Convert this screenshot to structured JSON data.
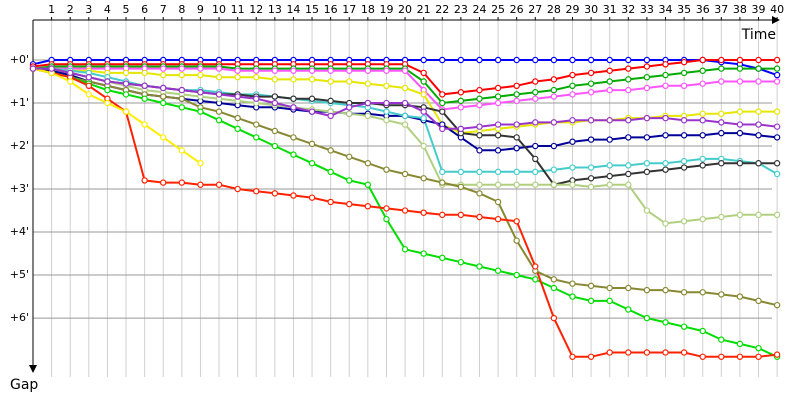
{
  "chart_data": {
    "type": "line",
    "x_label": "Time",
    "y_label": "Gap",
    "x": [
      0,
      1,
      2,
      3,
      4,
      5,
      6,
      7,
      8,
      9,
      10,
      11,
      12,
      13,
      14,
      15,
      16,
      17,
      18,
      19,
      20,
      21,
      22,
      23,
      24,
      25,
      26,
      27,
      28,
      29,
      30,
      31,
      32,
      33,
      34,
      35,
      36,
      37,
      38,
      39,
      40
    ],
    "xlim": [
      0,
      40.8
    ],
    "xticks": [
      1,
      2,
      3,
      4,
      5,
      6,
      7,
      8,
      9,
      10,
      11,
      12,
      13,
      14,
      15,
      16,
      17,
      18,
      19,
      20,
      21,
      22,
      23,
      24,
      25,
      26,
      27,
      28,
      29,
      30,
      31,
      32,
      33,
      34,
      35,
      36,
      37,
      38,
      39,
      40
    ],
    "ylim": [
      -0.93,
      7.37
    ],
    "yticks": [
      {
        "value": 0,
        "label": "+0'"
      },
      {
        "value": 1,
        "label": "+1'"
      },
      {
        "value": 2,
        "label": "+2'"
      },
      {
        "value": 3,
        "label": "+3'"
      },
      {
        "value": 4,
        "label": "+4'"
      },
      {
        "value": 5,
        "label": "+5'"
      },
      {
        "value": 6,
        "label": "+6'"
      }
    ],
    "grid": true,
    "series": [
      {
        "color": "#0000ff",
        "values": [
          0.1,
          0,
          0,
          0,
          0,
          0,
          0,
          0,
          0,
          0,
          0,
          0,
          0,
          0,
          0,
          0,
          0,
          0,
          0,
          0,
          0,
          0,
          0,
          0,
          0,
          0,
          0,
          0,
          0,
          0,
          0,
          0,
          0,
          0,
          0,
          0,
          0,
          0.05,
          0.1,
          0.2,
          0.35
        ]
      },
      {
        "color": "#ff0000",
        "values": [
          0.15,
          0.1,
          0.1,
          0.1,
          0.1,
          0.1,
          0.1,
          0.1,
          0.1,
          0.1,
          0.1,
          0.1,
          0.1,
          0.1,
          0.1,
          0.1,
          0.1,
          0.1,
          0.1,
          0.1,
          0.1,
          0.3,
          0.8,
          0.75,
          0.7,
          0.65,
          0.6,
          0.5,
          0.45,
          0.35,
          0.3,
          0.25,
          0.2,
          0.15,
          0.1,
          0.05,
          0,
          0,
          0,
          0,
          0
        ]
      },
      {
        "color": "#00aa00",
        "values": [
          0.2,
          0.15,
          0.15,
          0.15,
          0.15,
          0.15,
          0.15,
          0.15,
          0.15,
          0.15,
          0.15,
          0.2,
          0.2,
          0.2,
          0.2,
          0.2,
          0.2,
          0.2,
          0.2,
          0.2,
          0.2,
          0.5,
          1.0,
          0.95,
          0.9,
          0.85,
          0.8,
          0.75,
          0.7,
          0.6,
          0.55,
          0.5,
          0.45,
          0.4,
          0.35,
          0.3,
          0.25,
          0.2,
          0.2,
          0.2,
          0.2
        ]
      },
      {
        "color": "#ff55ff",
        "values": [
          0.2,
          0.2,
          0.2,
          0.2,
          0.2,
          0.2,
          0.2,
          0.2,
          0.2,
          0.2,
          0.2,
          0.25,
          0.25,
          0.25,
          0.25,
          0.25,
          0.25,
          0.25,
          0.25,
          0.25,
          0.25,
          0.7,
          1.15,
          1.1,
          1.05,
          1.0,
          0.95,
          0.9,
          0.85,
          0.8,
          0.75,
          0.7,
          0.7,
          0.65,
          0.6,
          0.6,
          0.55,
          0.5,
          0.5,
          0.5,
          0.5
        ]
      },
      {
        "color": "#e6e600",
        "values": [
          0.2,
          0.2,
          0.25,
          0.25,
          0.3,
          0.3,
          0.3,
          0.35,
          0.35,
          0.35,
          0.4,
          0.4,
          0.4,
          0.45,
          0.45,
          0.45,
          0.5,
          0.5,
          0.55,
          0.6,
          0.65,
          0.8,
          1.5,
          1.7,
          1.65,
          1.6,
          1.55,
          1.5,
          1.45,
          1.45,
          1.4,
          1.4,
          1.35,
          1.35,
          1.3,
          1.3,
          1.25,
          1.25,
          1.2,
          1.2,
          1.2
        ]
      },
      {
        "color": "#000099",
        "values": [
          0.2,
          0.25,
          0.35,
          0.5,
          0.6,
          0.7,
          0.8,
          0.85,
          0.9,
          0.95,
          1.0,
          1.05,
          1.1,
          1.1,
          1.15,
          1.2,
          1.2,
          1.25,
          1.25,
          1.3,
          1.3,
          1.4,
          1.5,
          1.8,
          2.1,
          2.1,
          2.05,
          2.0,
          2.0,
          1.9,
          1.85,
          1.85,
          1.8,
          1.8,
          1.75,
          1.75,
          1.75,
          1.7,
          1.7,
          1.75,
          1.8
        ]
      },
      {
        "color": "#44cccc",
        "values": [
          0.2,
          0.2,
          0.25,
          0.3,
          0.4,
          0.5,
          0.6,
          0.65,
          0.7,
          0.7,
          0.75,
          0.8,
          0.8,
          0.85,
          0.9,
          0.95,
          1.0,
          1.05,
          1.1,
          1.2,
          1.3,
          1.35,
          2.6,
          2.6,
          2.6,
          2.6,
          2.6,
          2.6,
          2.55,
          2.5,
          2.5,
          2.45,
          2.45,
          2.4,
          2.4,
          2.35,
          2.3,
          2.3,
          2.35,
          2.4,
          2.65
        ]
      },
      {
        "color": "#333333",
        "values": [
          0.2,
          0.2,
          0.3,
          0.4,
          0.5,
          0.55,
          0.6,
          0.65,
          0.7,
          0.75,
          0.8,
          0.8,
          0.85,
          0.85,
          0.9,
          0.9,
          0.95,
          1.0,
          1.0,
          1.05,
          1.05,
          1.1,
          1.2,
          1.7,
          1.75,
          1.75,
          1.8,
          2.3,
          2.9,
          2.8,
          2.75,
          2.7,
          2.65,
          2.6,
          2.55,
          2.5,
          2.45,
          2.4,
          2.4,
          2.4,
          2.4
        ]
      },
      {
        "color": "#b0d080",
        "values": [
          0.2,
          0.2,
          0.3,
          0.4,
          0.5,
          0.6,
          0.7,
          0.75,
          0.8,
          0.85,
          0.9,
          0.95,
          1.0,
          1.05,
          1.1,
          1.15,
          1.2,
          1.25,
          1.3,
          1.4,
          1.5,
          2.0,
          2.9,
          2.9,
          2.9,
          2.9,
          2.9,
          2.9,
          2.9,
          2.9,
          2.95,
          2.9,
          2.9,
          3.5,
          3.8,
          3.75,
          3.7,
          3.65,
          3.6,
          3.6,
          3.6
        ]
      },
      {
        "color": "#888833",
        "values": [
          0.2,
          0.3,
          0.4,
          0.5,
          0.6,
          0.7,
          0.8,
          0.85,
          0.9,
          1.1,
          1.2,
          1.35,
          1.5,
          1.65,
          1.8,
          1.95,
          2.1,
          2.25,
          2.4,
          2.55,
          2.65,
          2.75,
          2.85,
          2.95,
          3.1,
          3.3,
          4.2,
          4.9,
          5.1,
          5.2,
          5.25,
          5.3,
          5.3,
          5.35,
          5.35,
          5.4,
          5.4,
          5.45,
          5.5,
          5.6,
          5.7
        ]
      },
      {
        "color": "#00dd00",
        "values": [
          0.2,
          0.3,
          0.4,
          0.55,
          0.7,
          0.8,
          0.9,
          1.0,
          1.1,
          1.2,
          1.4,
          1.6,
          1.8,
          2.0,
          2.2,
          2.4,
          2.6,
          2.8,
          2.9,
          3.7,
          4.4,
          4.5,
          4.6,
          4.7,
          4.8,
          4.9,
          5.0,
          5.1,
          5.3,
          5.5,
          5.6,
          5.6,
          5.8,
          6.0,
          6.1,
          6.2,
          6.3,
          6.5,
          6.6,
          6.7,
          6.9
        ]
      },
      {
        "color": "#ff2200",
        "values": [
          0.2,
          0.3,
          0.4,
          0.6,
          0.9,
          1.2,
          2.8,
          2.85,
          2.85,
          2.9,
          2.9,
          3.0,
          3.05,
          3.1,
          3.15,
          3.2,
          3.3,
          3.35,
          3.4,
          3.45,
          3.5,
          3.55,
          3.6,
          3.6,
          3.65,
          3.7,
          3.75,
          4.8,
          6.0,
          6.9,
          6.9,
          6.8,
          6.8,
          6.8,
          6.8,
          6.8,
          6.9,
          6.9,
          6.9,
          6.9,
          6.85
        ]
      },
      {
        "color": "#ffee00",
        "values": [
          0.2,
          0.3,
          0.5,
          0.8,
          1.0,
          1.2,
          1.5,
          1.8,
          2.1,
          2.4,
          null,
          null,
          null,
          null,
          null,
          null,
          null,
          null,
          null,
          null,
          null,
          null,
          null,
          null,
          null,
          null,
          null,
          null,
          null,
          null,
          null,
          null,
          null,
          null,
          null,
          null,
          null,
          null,
          null,
          null,
          null
        ]
      },
      {
        "color": "#9933cc",
        "values": [
          0.2,
          0.2,
          0.3,
          0.4,
          0.5,
          0.55,
          0.6,
          0.65,
          0.7,
          0.75,
          0.8,
          0.85,
          0.9,
          1.0,
          1.1,
          1.2,
          1.3,
          1.1,
          1.0,
          1.0,
          1.0,
          1.2,
          1.6,
          1.6,
          1.55,
          1.5,
          1.5,
          1.45,
          1.45,
          1.4,
          1.4,
          1.4,
          1.4,
          1.35,
          1.35,
          1.4,
          1.4,
          1.45,
          1.5,
          1.5,
          1.55
        ]
      }
    ]
  }
}
